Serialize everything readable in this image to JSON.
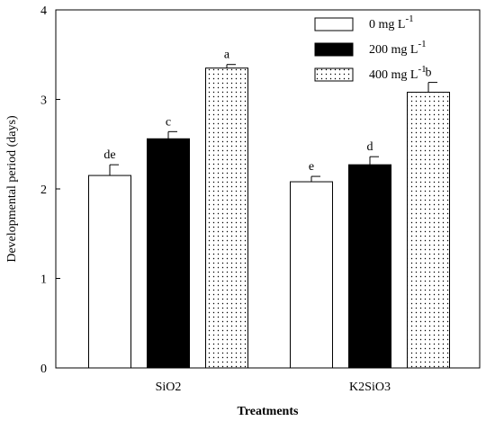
{
  "chart_data": {
    "type": "bar",
    "categories": [
      "SiO2",
      "K2SiO3"
    ],
    "series": [
      {
        "name": "0 mg L",
        "sup": "-1",
        "values": [
          2.15,
          2.08
        ],
        "errors": [
          0.12,
          0.06
        ],
        "letters": [
          "de",
          "e"
        ],
        "fill": "white"
      },
      {
        "name": "200 mg L",
        "sup": "-1",
        "values": [
          2.56,
          2.27
        ],
        "errors": [
          0.08,
          0.09
        ],
        "letters": [
          "c",
          "d"
        ],
        "fill": "black"
      },
      {
        "name": "400 mg L",
        "sup": "-1",
        "values": [
          3.35,
          3.08
        ],
        "errors": [
          0.04,
          0.11
        ],
        "letters": [
          "a",
          "b"
        ],
        "fill": "dots"
      }
    ],
    "xlabel": "Treatments",
    "ylabel": "Developmental period (days)",
    "ylim": [
      0,
      4
    ],
    "yticks": [
      "0",
      "1",
      "2",
      "3",
      "4"
    ],
    "legend_position": "top-right",
    "grid": false
  }
}
